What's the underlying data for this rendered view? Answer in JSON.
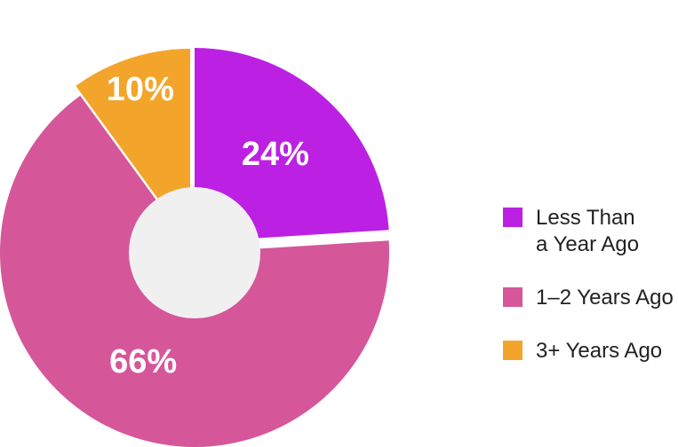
{
  "chart_data": {
    "type": "pie",
    "style": "exploded-donut",
    "title": "",
    "slices": [
      {
        "name": "Less Than a Year Ago",
        "legend_lines": [
          "Less Than",
          "a Year Ago"
        ],
        "value": 24,
        "label": "24%",
        "color": "#BC21E3"
      },
      {
        "name": "1–2 Years Ago",
        "legend_lines": [
          "1–2 Years Ago"
        ],
        "value": 66,
        "label": "66%",
        "color": "#D5579A"
      },
      {
        "name": "3+ Years Ago",
        "legend_lines": [
          "3+ Years Ago"
        ],
        "value": 10,
        "label": "10%",
        "color": "#F2A52A"
      }
    ],
    "center_hole_color": "#F1F0F1",
    "legend_position": "right"
  }
}
